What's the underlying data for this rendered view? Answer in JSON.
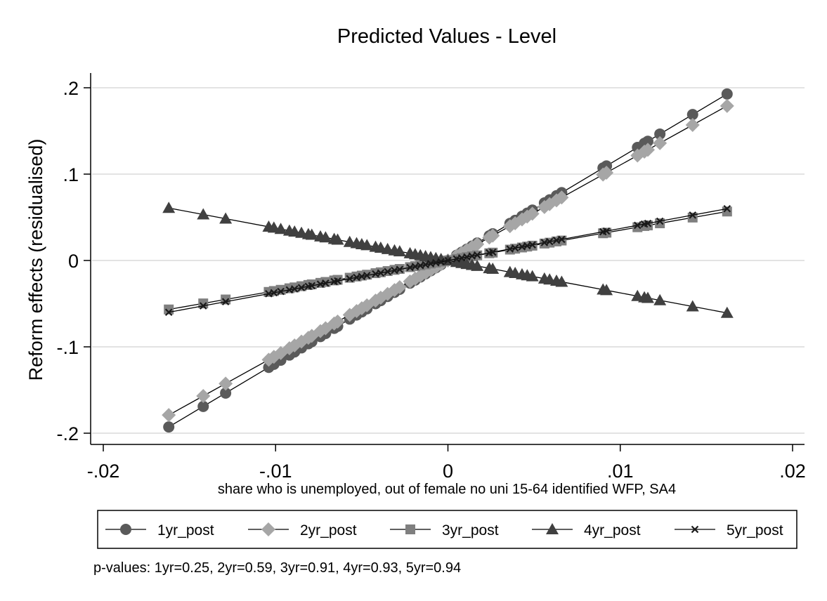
{
  "chart_data": {
    "type": "line",
    "title": "Predicted Values - Level",
    "xlabel": "share who is unemployed, out of female no uni 15-64 identified WFP, SA4",
    "ylabel": "Reform effects (residualised)",
    "xlim": [
      -0.02,
      0.02
    ],
    "ylim": [
      -0.2,
      0.2
    ],
    "xticks": [
      -0.02,
      -0.01,
      0,
      0.01,
      0.02
    ],
    "xtick_labels": [
      "-.02",
      "-.01",
      "0",
      ".01",
      ".02"
    ],
    "yticks": [
      -0.2,
      -0.1,
      0,
      0.1,
      0.2
    ],
    "ytick_labels": [
      "-.2",
      "-.1",
      "0",
      ".1",
      ".2"
    ],
    "grid": "horizontal",
    "legend_position": "bottom",
    "x": [
      -0.0162,
      -0.0142,
      -0.0129,
      -0.0104,
      -0.0101,
      -0.0097,
      -0.0092,
      -0.0089,
      -0.0085,
      -0.0081,
      -0.0079,
      -0.0074,
      -0.0071,
      -0.0066,
      -0.0064,
      -0.0057,
      -0.0053,
      -0.005,
      -0.0047,
      -0.0042,
      -0.0039,
      -0.0035,
      -0.0031,
      -0.0028,
      -0.0022,
      -0.0019,
      -0.0016,
      -0.0013,
      -0.001,
      -0.0007,
      -0.0004,
      0.0,
      0.0005,
      0.0008,
      0.0011,
      0.0014,
      0.0017,
      0.0024,
      0.0026,
      0.0036,
      0.0039,
      0.0043,
      0.0046,
      0.0049,
      0.0056,
      0.0059,
      0.0063,
      0.0066,
      0.009,
      0.0092,
      0.011,
      0.0114,
      0.0116,
      0.0123,
      0.0142,
      0.0162
    ],
    "series": [
      {
        "name": "1yr_post",
        "marker": "circle",
        "color": "#5a5a5a",
        "slope": 11.9
      },
      {
        "name": "2yr_post",
        "marker": "diamond",
        "color": "#a6a6a6",
        "slope": 11.05
      },
      {
        "name": "3yr_post",
        "marker": "square",
        "color": "#7f7f7f",
        "slope": 3.5
      },
      {
        "name": "4yr_post",
        "marker": "triangle",
        "color": "#404040",
        "slope": -3.75
      },
      {
        "name": "5yr_post",
        "marker": "x",
        "color": "#1a1a1a",
        "slope": 3.7
      }
    ],
    "note": "p-values: 1yr=0.25,  2yr=0.59,  3yr=0.91,  4yr=0.93,  5yr=0.94"
  }
}
